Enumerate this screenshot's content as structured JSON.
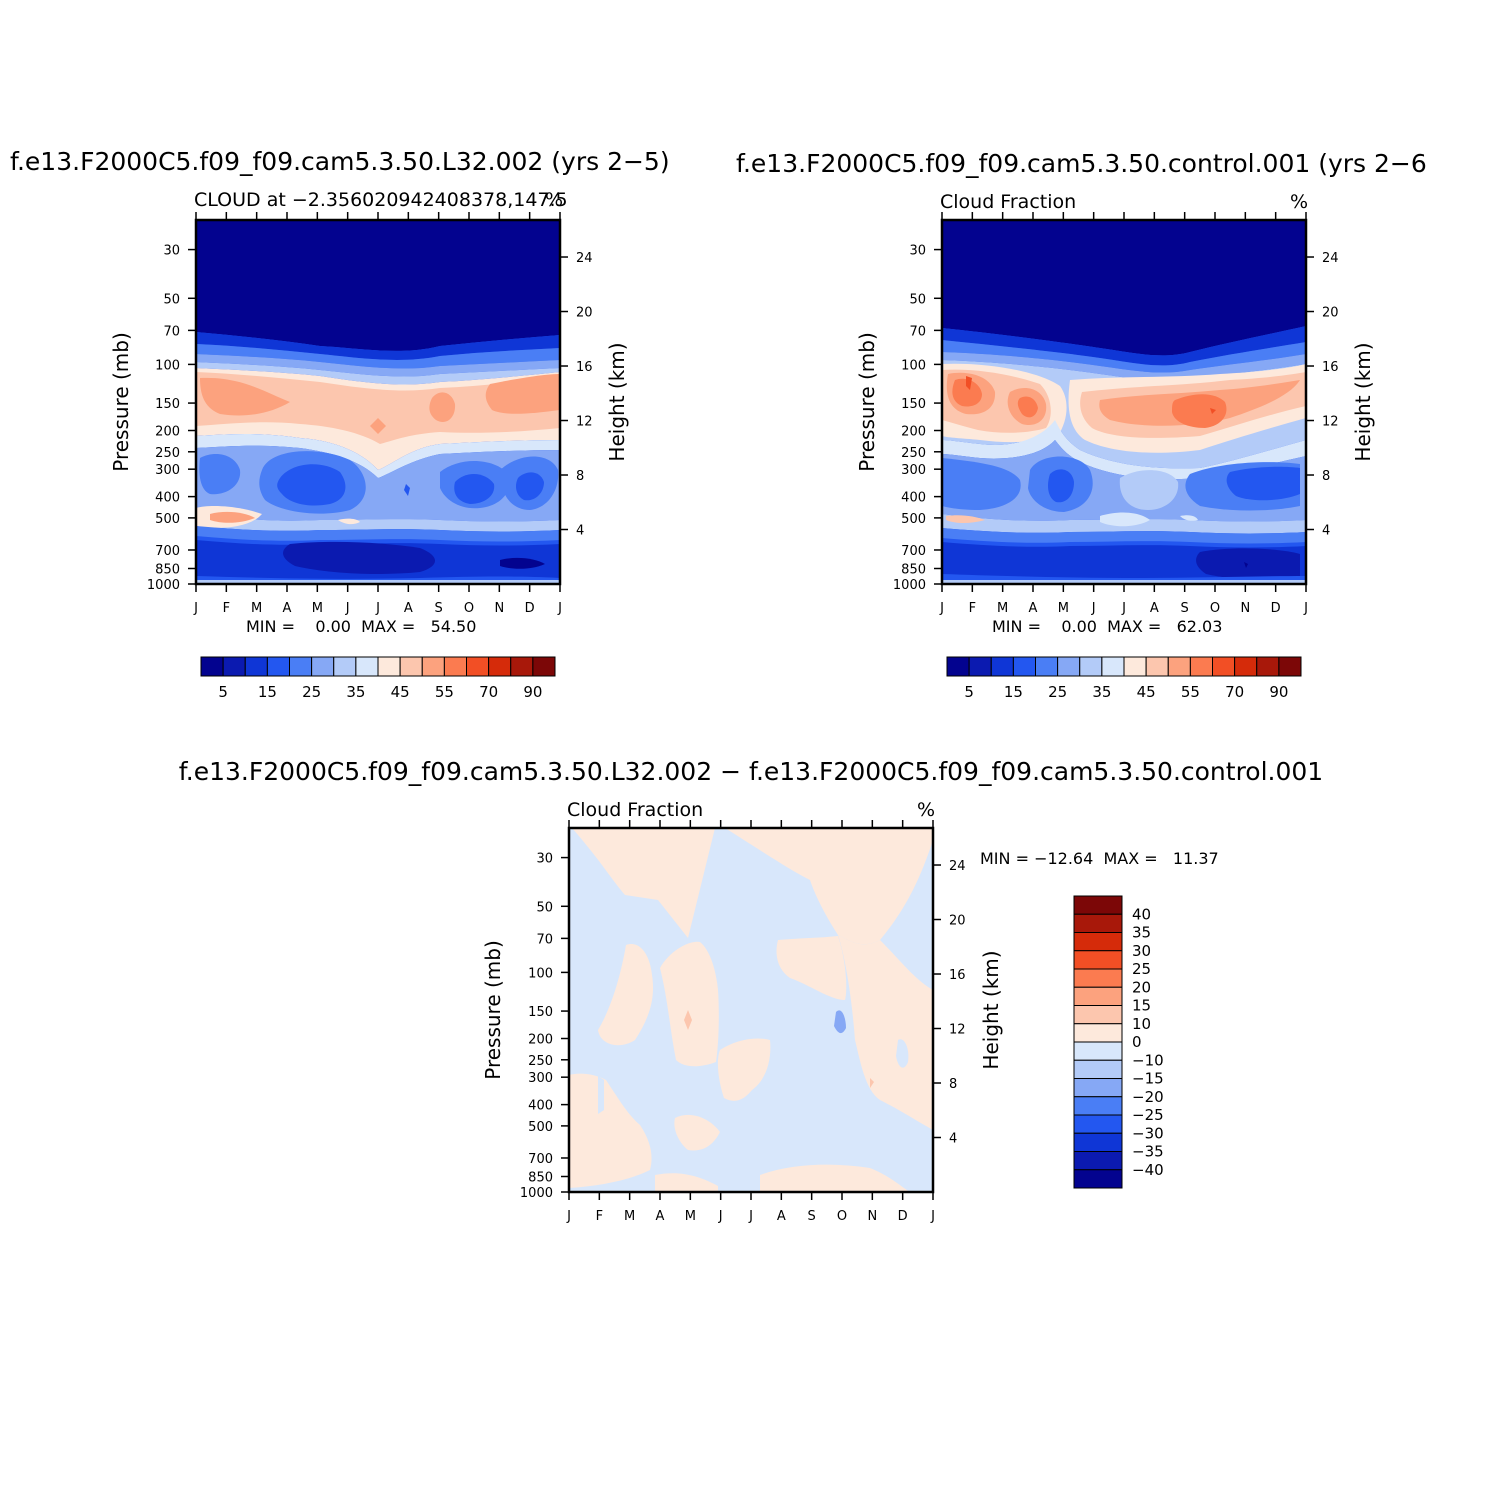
{
  "chart_data": [
    {
      "type": "heatmap",
      "panel": "top-left",
      "title": "f.e13.F2000C5.f09_f09.cam5.3.50.L32.002 (yrs 2−5)",
      "subtitle": "CLOUD at −2.356020942408378,147.5",
      "units": "%",
      "ylabel": "Pressure (mb)",
      "y2label": "Height (km)",
      "x_ticks": [
        "J",
        "F",
        "M",
        "A",
        "M",
        "J",
        "J",
        "A",
        "S",
        "O",
        "N",
        "D",
        "J"
      ],
      "y_ticks": [
        "30",
        "50",
        "70",
        "100",
        "150",
        "200",
        "250",
        "300",
        "400",
        "500",
        "700",
        "850",
        "1000"
      ],
      "y2_ticks": [
        "24",
        "20",
        "16",
        "12",
        "8",
        "4"
      ],
      "y_scale": "log",
      "ylim": [
        1000,
        22
      ],
      "stats": "MIN =    0.00  MAX =   54.50",
      "min": 0.0,
      "max": 54.5,
      "colorbar": {
        "orientation": "horizontal",
        "labels": [
          "5",
          "15",
          "25",
          "35",
          "45",
          "55",
          "70",
          "90"
        ],
        "colors": [
          "#03038f",
          "#0b1ab0",
          "#0f36d6",
          "#2357f0",
          "#4a7ef5",
          "#86a8f5",
          "#b3cbf8",
          "#d8e7fb",
          "#fde9dc",
          "#fcc6ae",
          "#fca27e",
          "#fb7b50",
          "#f24f25",
          "#d52b0a",
          "#a8180a",
          "#7c0707"
        ]
      }
    },
    {
      "type": "heatmap",
      "panel": "top-right",
      "title": "f.e13.F2000C5.f09_f09.cam5.3.50.control.001 (yrs 2−6",
      "subtitle": "Cloud Fraction",
      "units": "%",
      "ylabel": "Pressure (mb)",
      "y2label": "Height (km)",
      "x_ticks": [
        "J",
        "F",
        "M",
        "A",
        "M",
        "J",
        "J",
        "A",
        "S",
        "O",
        "N",
        "D",
        "J"
      ],
      "y_ticks": [
        "30",
        "50",
        "70",
        "100",
        "150",
        "200",
        "250",
        "300",
        "400",
        "500",
        "700",
        "850",
        "1000"
      ],
      "y2_ticks": [
        "24",
        "20",
        "16",
        "12",
        "8",
        "4"
      ],
      "y_scale": "log",
      "ylim": [
        1000,
        22
      ],
      "stats": "MIN =    0.00  MAX =   62.03",
      "min": 0.0,
      "max": 62.03,
      "colorbar": {
        "orientation": "horizontal",
        "labels": [
          "5",
          "15",
          "25",
          "35",
          "45",
          "55",
          "70",
          "90"
        ],
        "colors": [
          "#03038f",
          "#0b1ab0",
          "#0f36d6",
          "#2357f0",
          "#4a7ef5",
          "#86a8f5",
          "#b3cbf8",
          "#d8e7fb",
          "#fde9dc",
          "#fcc6ae",
          "#fca27e",
          "#fb7b50",
          "#f24f25",
          "#d52b0a",
          "#a8180a",
          "#7c0707"
        ]
      }
    },
    {
      "type": "heatmap",
      "panel": "bottom-center",
      "title": "f.e13.F2000C5.f09_f09.cam5.3.50.L32.002 − f.e13.F2000C5.f09_f09.cam5.3.50.control.001",
      "subtitle": "Cloud Fraction",
      "units": "%",
      "ylabel": "Pressure (mb)",
      "y2label": "Height (km)",
      "x_ticks": [
        "J",
        "F",
        "M",
        "A",
        "M",
        "J",
        "J",
        "A",
        "S",
        "O",
        "N",
        "D",
        "J"
      ],
      "y_ticks": [
        "30",
        "50",
        "70",
        "100",
        "150",
        "200",
        "250",
        "300",
        "400",
        "500",
        "700",
        "850",
        "1000"
      ],
      "y2_ticks": [
        "24",
        "20",
        "16",
        "12",
        "8",
        "4"
      ],
      "y_scale": "log",
      "ylim": [
        1000,
        22
      ],
      "stats": "MIN = −12.64  MAX =   11.37",
      "min": -12.64,
      "max": 11.37,
      "colorbar": {
        "orientation": "vertical",
        "labels": [
          "40",
          "35",
          "30",
          "25",
          "20",
          "15",
          "10",
          "0",
          "−10",
          "−15",
          "−20",
          "−25",
          "−30",
          "−35",
          "−40"
        ],
        "colors": [
          "#7c0707",
          "#a8180a",
          "#d52b0a",
          "#f24f25",
          "#fb7b50",
          "#fca27e",
          "#fcc6ae",
          "#fde9dc",
          "#d8e7fb",
          "#b3cbf8",
          "#86a8f5",
          "#4a7ef5",
          "#2357f0",
          "#0f36d6",
          "#0b1ab0",
          "#03038f"
        ]
      }
    }
  ]
}
